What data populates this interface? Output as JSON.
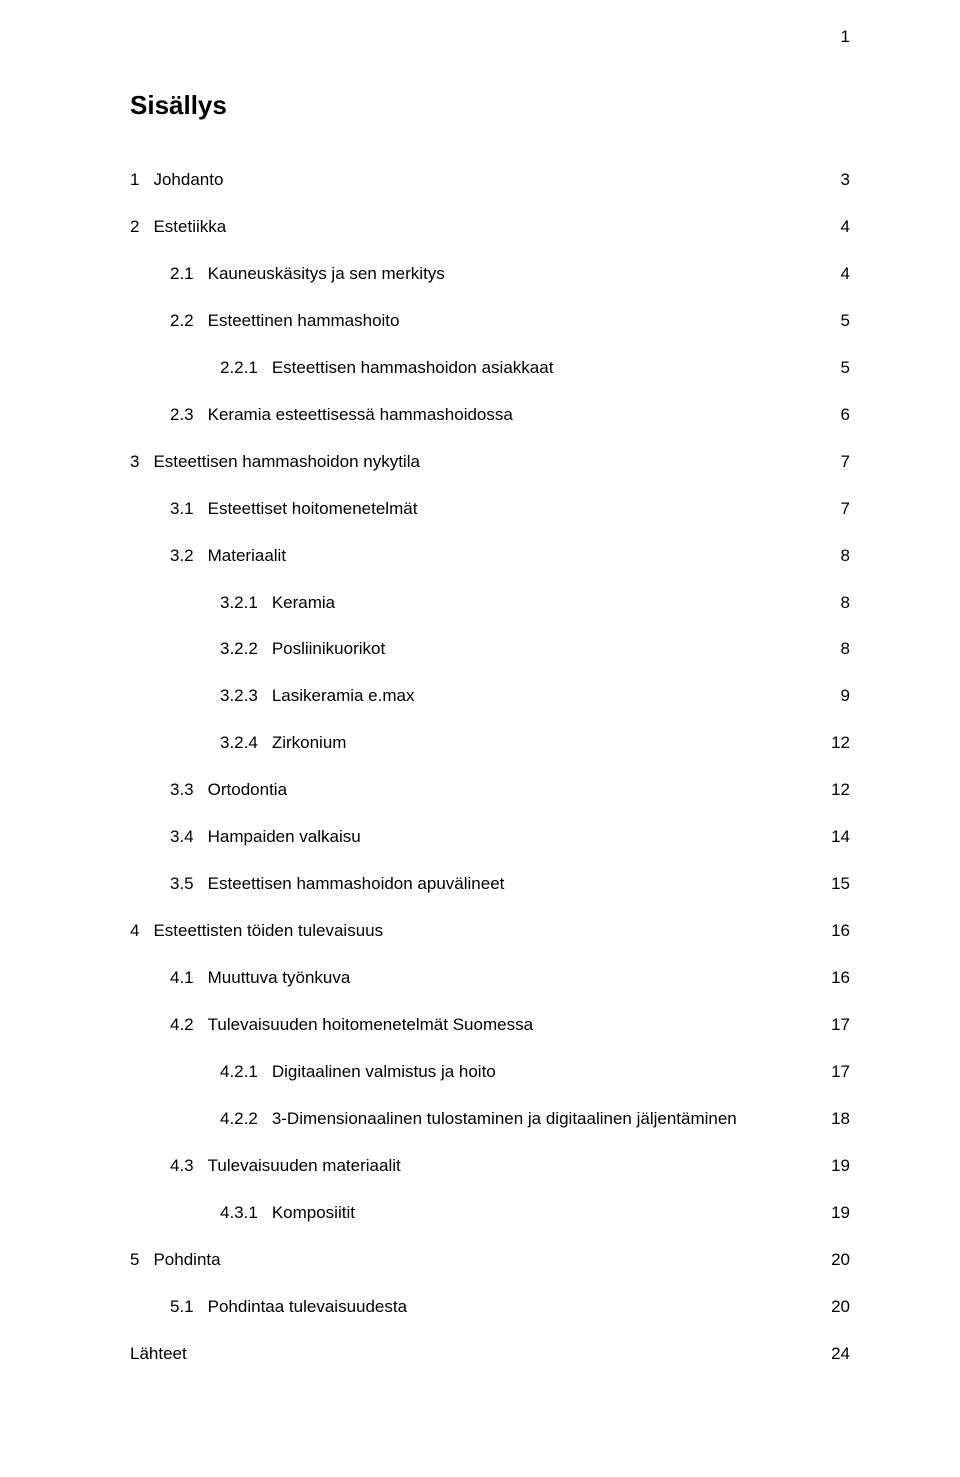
{
  "page_number_top_right": "1",
  "title": "Sisällys",
  "font": {
    "body_size_pt": 13,
    "title_size_pt": 20,
    "color_text": "#000000",
    "color_bg": "#ffffff"
  },
  "toc": [
    {
      "num": "1",
      "text": "Johdanto",
      "page": "3",
      "indent": 0,
      "gapBefore": false
    },
    {
      "num": "2",
      "text": "Estetiikka",
      "page": "4",
      "indent": 0,
      "gapBefore": true
    },
    {
      "num": "2.1",
      "text": "Kauneuskäsitys ja sen merkitys",
      "page": "4",
      "indent": 1,
      "gapBefore": true
    },
    {
      "num": "2.2",
      "text": "Esteettinen hammashoito",
      "page": "5",
      "indent": 1,
      "gapBefore": false
    },
    {
      "num": "2.2.1",
      "text": "Esteettisen hammashoidon asiakkaat",
      "page": "5",
      "indent": 2,
      "gapBefore": false
    },
    {
      "num": "2.3",
      "text": "Keramia esteettisessä hammashoidossa",
      "page": "6",
      "indent": 1,
      "gapBefore": false
    },
    {
      "num": "3",
      "text": "Esteettisen hammashoidon nykytila",
      "page": "7",
      "indent": 0,
      "gapBefore": true
    },
    {
      "num": "3.1",
      "text": "Esteettiset hoitomenetelmät",
      "page": "7",
      "indent": 1,
      "gapBefore": true
    },
    {
      "num": "3.2",
      "text": "Materiaalit",
      "page": "8",
      "indent": 1,
      "gapBefore": false
    },
    {
      "num": "3.2.1",
      "text": "Keramia",
      "page": "8",
      "indent": 2,
      "gapBefore": false
    },
    {
      "num": "3.2.2",
      "text": "Posliinikuorikot",
      "page": "8",
      "indent": 2,
      "gapBefore": false
    },
    {
      "num": "3.2.3",
      "text": "Lasikeramia e.max",
      "page": "9",
      "indent": 2,
      "gapBefore": false
    },
    {
      "num": "3.2.4",
      "text": "Zirkonium",
      "page": "12",
      "indent": 2,
      "gapBefore": false
    },
    {
      "num": "3.3",
      "text": "Ortodontia",
      "page": "12",
      "indent": 1,
      "gapBefore": false
    },
    {
      "num": "3.4",
      "text": "Hampaiden valkaisu",
      "page": "14",
      "indent": 1,
      "gapBefore": false
    },
    {
      "num": "3.5",
      "text": "Esteettisen hammashoidon apuvälineet",
      "page": "15",
      "indent": 1,
      "gapBefore": false
    },
    {
      "num": "4",
      "text": "Esteettisten töiden tulevaisuus",
      "page": "16",
      "indent": 0,
      "gapBefore": true
    },
    {
      "num": "4.1",
      "text": "Muuttuva työnkuva",
      "page": "16",
      "indent": 1,
      "gapBefore": true
    },
    {
      "num": "4.2",
      "text": "Tulevaisuuden hoitomenetelmät Suomessa",
      "page": "17",
      "indent": 1,
      "gapBefore": false
    },
    {
      "num": "4.2.1",
      "text": "Digitaalinen valmistus ja hoito",
      "page": "17",
      "indent": 2,
      "gapBefore": false
    },
    {
      "num": "4.2.2",
      "text": "3-Dimensionaalinen tulostaminen ja digitaalinen jäljentäminen",
      "page": "18",
      "indent": 2,
      "gapBefore": false
    },
    {
      "num": "4.3",
      "text": "Tulevaisuuden materiaalit",
      "page": "19",
      "indent": 1,
      "gapBefore": false
    },
    {
      "num": "4.3.1",
      "text": "Komposiitit",
      "page": "19",
      "indent": 2,
      "gapBefore": false
    },
    {
      "num": "5",
      "text": "Pohdinta",
      "page": "20",
      "indent": 0,
      "gapBefore": true
    },
    {
      "num": "5.1",
      "text": "Pohdintaa tulevaisuudesta",
      "page": "20",
      "indent": 1,
      "gapBefore": true
    },
    {
      "num": "",
      "text": "Lähteet",
      "page": "24",
      "indent": 0,
      "gapBefore": true
    }
  ]
}
